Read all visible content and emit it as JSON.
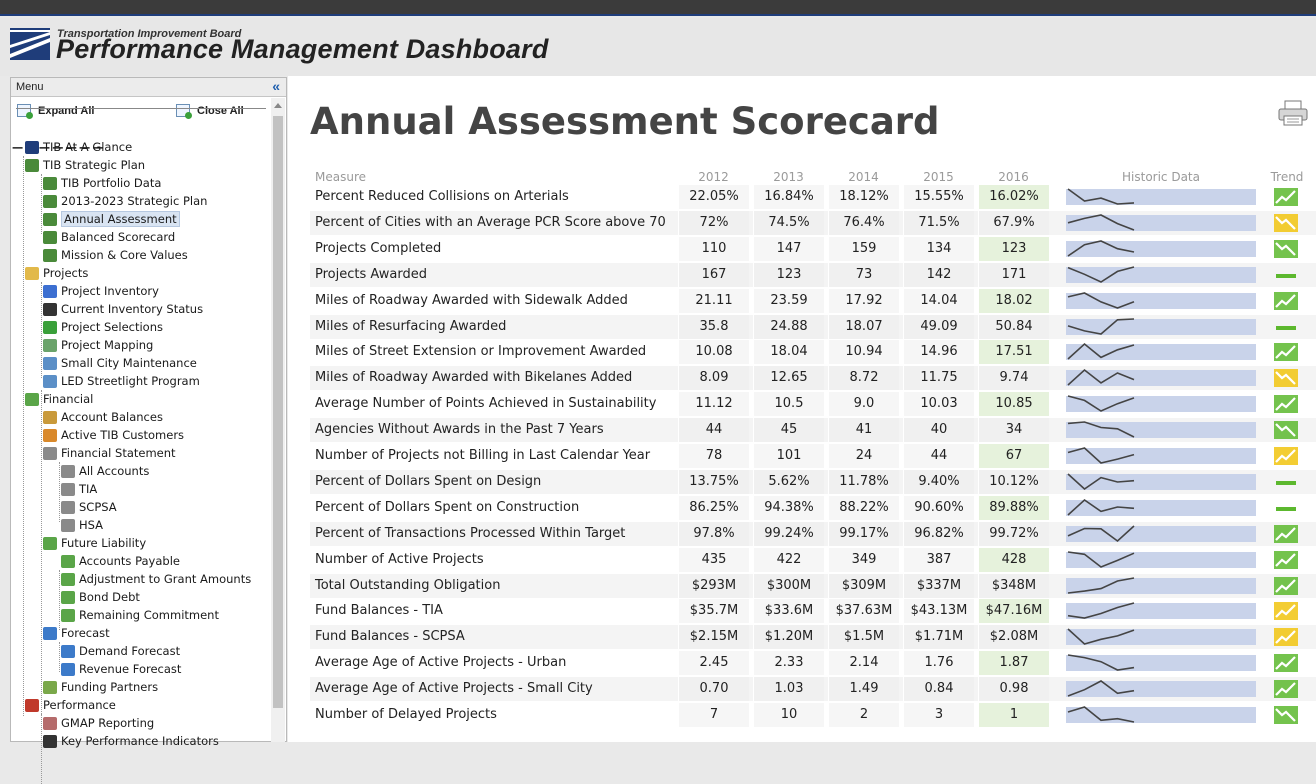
{
  "header": {
    "org": "Transportation Improvement Board",
    "title": "Performance Management Dashboard"
  },
  "menu": {
    "title": "Menu",
    "collapse_icon": "double-chevron-left-icon",
    "expand_all": "Expand All",
    "close_all": "Close All",
    "tree": [
      {
        "label": "TIB At A Glance",
        "level": 0,
        "icon": "tib-flag-icon"
      },
      {
        "label": "TIB Strategic Plan",
        "level": 0,
        "icon": "sitemap-icon",
        "expanded": true
      },
      {
        "label": "TIB Portfolio Data",
        "level": 1,
        "icon": "sitemap-icon"
      },
      {
        "label": "2013-2023 Strategic Plan",
        "level": 1,
        "icon": "sitemap-icon"
      },
      {
        "label": "Annual Assessment",
        "level": 1,
        "icon": "sitemap-icon",
        "selected": true
      },
      {
        "label": "Balanced Scorecard",
        "level": 1,
        "icon": "sitemap-icon"
      },
      {
        "label": "Mission & Core Values",
        "level": 1,
        "icon": "sitemap-icon"
      },
      {
        "label": "Projects",
        "level": 0,
        "icon": "folder-icon",
        "expanded": true
      },
      {
        "label": "Project Inventory",
        "level": 1,
        "icon": "bar-chart-icon"
      },
      {
        "label": "Current Inventory Status",
        "level": 1,
        "icon": "traffic-light-icon"
      },
      {
        "label": "Project Selections",
        "level": 1,
        "icon": "plus-circle-icon"
      },
      {
        "label": "Project Mapping",
        "level": 1,
        "icon": "map-icon"
      },
      {
        "label": "Small City Maintenance",
        "level": 1,
        "icon": "grid-icon"
      },
      {
        "label": "LED Streetlight Program",
        "level": 1,
        "icon": "grid-icon"
      },
      {
        "label": "Financial",
        "level": 0,
        "icon": "money-icon",
        "expanded": true
      },
      {
        "label": "Account Balances",
        "level": 1,
        "icon": "scale-icon"
      },
      {
        "label": "Active TIB Customers",
        "level": 1,
        "icon": "users-icon"
      },
      {
        "label": "Financial Statement",
        "level": 1,
        "icon": "bank-icon",
        "expanded": true
      },
      {
        "label": "All Accounts",
        "level": 2,
        "icon": "bank-icon"
      },
      {
        "label": "TIA",
        "level": 2,
        "icon": "bank-icon"
      },
      {
        "label": "SCPSA",
        "level": 2,
        "icon": "bank-icon"
      },
      {
        "label": "HSA",
        "level": 2,
        "icon": "bank-icon"
      },
      {
        "label": "Future Liability",
        "level": 1,
        "icon": "money-icon",
        "expanded": true
      },
      {
        "label": "Accounts Payable",
        "level": 2,
        "icon": "money-icon"
      },
      {
        "label": "Adjustment to Grant Amounts",
        "level": 2,
        "icon": "money-icon"
      },
      {
        "label": "Bond Debt",
        "level": 2,
        "icon": "money-icon"
      },
      {
        "label": "Remaining Commitment",
        "level": 2,
        "icon": "money-icon"
      },
      {
        "label": "Forecast",
        "level": 1,
        "icon": "line-chart-icon",
        "expanded": true
      },
      {
        "label": "Demand Forecast",
        "level": 2,
        "icon": "line-chart-icon"
      },
      {
        "label": "Revenue Forecast",
        "level": 2,
        "icon": "line-chart-icon"
      },
      {
        "label": "Funding Partners",
        "level": 1,
        "icon": "plus-box-icon"
      },
      {
        "label": "Performance",
        "level": 0,
        "icon": "chart-icon",
        "expanded": true
      },
      {
        "label": "GMAP Reporting",
        "level": 1,
        "icon": "document-icon"
      },
      {
        "label": "Key Performance Indicators",
        "level": 1,
        "icon": "traffic-light-icon"
      }
    ]
  },
  "main": {
    "title": "Annual Assessment Scorecard",
    "print_icon": "printer-icon",
    "columns": {
      "measure": "Measure",
      "years": [
        "2012",
        "2013",
        "2014",
        "2015",
        "2016"
      ],
      "historic": "Historic Data",
      "trend": "Trend"
    },
    "rows": [
      {
        "measure": "Percent Reduced Collisions on Arterials",
        "values": [
          "22.05%",
          "16.84%",
          "18.12%",
          "15.55%",
          "16.02%"
        ],
        "series": [
          22.05,
          16.84,
          18.12,
          15.55,
          16.02
        ],
        "trend": "up-green"
      },
      {
        "measure": "Percent of Cities with an Average PCR Score above 70",
        "values": [
          "72%",
          "74.5%",
          "76.4%",
          "71.5%",
          "67.9%"
        ],
        "series": [
          72,
          74.5,
          76.4,
          71.5,
          67.9
        ],
        "trend": "down-yellow"
      },
      {
        "measure": "Projects Completed",
        "values": [
          "110",
          "147",
          "159",
          "134",
          "123"
        ],
        "series": [
          110,
          147,
          159,
          134,
          123
        ],
        "trend": "down-green"
      },
      {
        "measure": "Projects Awarded",
        "values": [
          "167",
          "123",
          "73",
          "142",
          "171"
        ],
        "series": [
          167,
          123,
          73,
          142,
          171
        ],
        "trend": "flat-green"
      },
      {
        "measure": "Miles of Roadway Awarded with Sidewalk Added",
        "values": [
          "21.11",
          "23.59",
          "17.92",
          "14.04",
          "18.02"
        ],
        "series": [
          21.11,
          23.59,
          17.92,
          14.04,
          18.02
        ],
        "trend": "up-green"
      },
      {
        "measure": "Miles of Resurfacing Awarded",
        "values": [
          "35.8",
          "24.88",
          "18.07",
          "49.09",
          "50.84"
        ],
        "series": [
          35.8,
          24.88,
          18.07,
          49.09,
          50.84
        ],
        "trend": "flat-green"
      },
      {
        "measure": "Miles of Street Extension or Improvement Awarded",
        "values": [
          "10.08",
          "18.04",
          "10.94",
          "14.96",
          "17.51"
        ],
        "series": [
          10.08,
          18.04,
          10.94,
          14.96,
          17.51
        ],
        "trend": "up-green"
      },
      {
        "measure": "Miles of Roadway Awarded with Bikelanes Added",
        "values": [
          "8.09",
          "12.65",
          "8.72",
          "11.75",
          "9.74"
        ],
        "series": [
          8.09,
          12.65,
          8.72,
          11.75,
          9.74
        ],
        "trend": "down-yellow"
      },
      {
        "measure": "Average Number of Points Achieved in Sustainability",
        "values": [
          "11.12",
          "10.5",
          "9.0",
          "10.03",
          "10.85"
        ],
        "series": [
          11.12,
          10.5,
          9.0,
          10.03,
          10.85
        ],
        "trend": "up-green"
      },
      {
        "measure": "Agencies Without Awards in the Past 7 Years",
        "values": [
          "44",
          "45",
          "41",
          "40",
          "34"
        ],
        "series": [
          44,
          45,
          41,
          40,
          34
        ],
        "trend": "down-green"
      },
      {
        "measure": "Number of Projects not Billing in Last Calendar Year",
        "values": [
          "78",
          "101",
          "24",
          "44",
          "67"
        ],
        "series": [
          78,
          101,
          24,
          44,
          67
        ],
        "trend": "up-yellow"
      },
      {
        "measure": "Percent of Dollars Spent on Design",
        "values": [
          "13.75%",
          "5.62%",
          "11.78%",
          "9.40%",
          "10.12%"
        ],
        "series": [
          13.75,
          5.62,
          11.78,
          9.4,
          10.12
        ],
        "trend": "flat-green"
      },
      {
        "measure": "Percent of Dollars Spent on Construction",
        "values": [
          "86.25%",
          "94.38%",
          "88.22%",
          "90.60%",
          "89.88%"
        ],
        "series": [
          86.25,
          94.38,
          88.22,
          90.6,
          89.88
        ],
        "trend": "flat-green"
      },
      {
        "measure": "Percent of Transactions Processed Within Target",
        "values": [
          "97.8%",
          "99.24%",
          "99.17%",
          "96.82%",
          "99.72%"
        ],
        "series": [
          97.8,
          99.24,
          99.17,
          96.82,
          99.72
        ],
        "trend": "up-green"
      },
      {
        "measure": "Number of Active Projects",
        "values": [
          "435",
          "422",
          "349",
          "387",
          "428"
        ],
        "series": [
          435,
          422,
          349,
          387,
          428
        ],
        "trend": "up-green"
      },
      {
        "measure": "Total Outstanding Obligation",
        "values": [
          "$293M",
          "$300M",
          "$309M",
          "$337M",
          "$348M"
        ],
        "series": [
          293,
          300,
          309,
          337,
          348
        ],
        "trend": "up-green"
      },
      {
        "measure": "Fund Balances - TIA",
        "values": [
          "$35.7M",
          "$33.6M",
          "$37.63M",
          "$43.13M",
          "$47.16M"
        ],
        "series": [
          35.7,
          33.6,
          37.63,
          43.13,
          47.16
        ],
        "trend": "up-yellow"
      },
      {
        "measure": "Fund Balances - SCPSA",
        "values": [
          "$2.15M",
          "$1.20M",
          "$1.5M",
          "$1.71M",
          "$2.08M"
        ],
        "series": [
          2.15,
          1.2,
          1.5,
          1.71,
          2.08
        ],
        "trend": "up-yellow"
      },
      {
        "measure": "Average Age of Active Projects - Urban",
        "values": [
          "2.45",
          "2.33",
          "2.14",
          "1.76",
          "1.87"
        ],
        "series": [
          2.45,
          2.33,
          2.14,
          1.76,
          1.87
        ],
        "trend": "up-green"
      },
      {
        "measure": "Average Age of Active Projects - Small City",
        "values": [
          "0.70",
          "1.03",
          "1.49",
          "0.84",
          "0.98"
        ],
        "series": [
          0.7,
          1.03,
          1.49,
          0.84,
          0.98
        ],
        "trend": "up-green"
      },
      {
        "measure": "Number of Delayed Projects",
        "values": [
          "7",
          "10",
          "2",
          "3",
          "1"
        ],
        "series": [
          7,
          10,
          2,
          3,
          1
        ],
        "trend": "down-green"
      }
    ]
  },
  "colors": {
    "accent_blue": "#1f3d7a",
    "current_year_bg": "#e6f2dc",
    "spark_band": "#c9d3ea",
    "trend_green": "#5cb82e",
    "trend_yellow": "#f1c40f"
  }
}
